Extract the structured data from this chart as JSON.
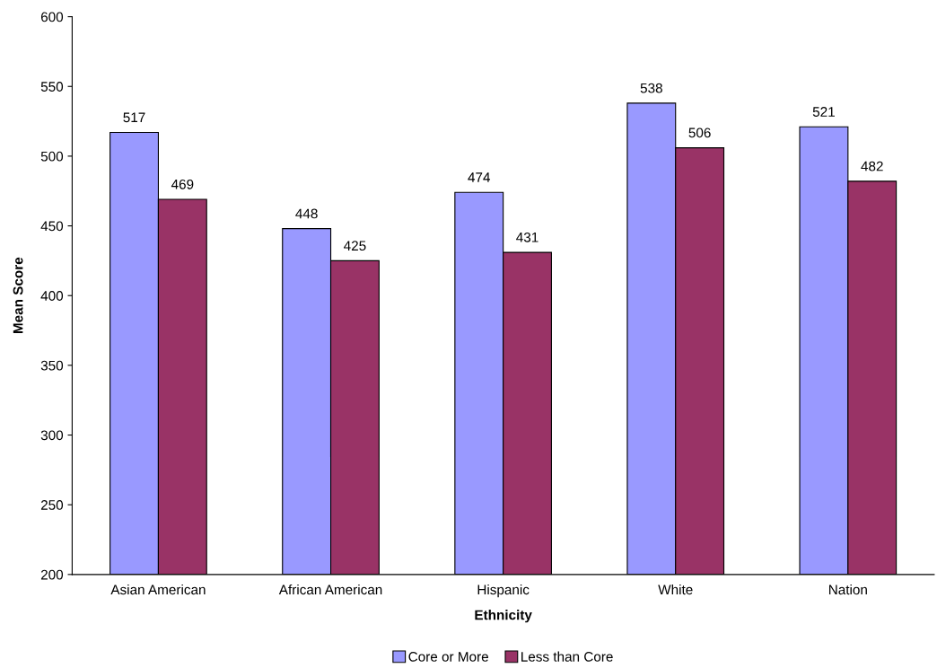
{
  "chart_data": {
    "type": "bar",
    "xlabel": "Ethnicity",
    "ylabel": "Mean Score",
    "categories": [
      "Asian American",
      "African American",
      "Hispanic",
      "White",
      "Nation"
    ],
    "series": [
      {
        "name": "Core or More",
        "color": "#9999ff",
        "values": [
          517,
          448,
          474,
          538,
          521
        ]
      },
      {
        "name": "Less than Core",
        "color": "#993366",
        "values": [
          469,
          425,
          431,
          506,
          482
        ]
      }
    ],
    "ylim": [
      200,
      600
    ],
    "yticks": [
      200,
      250,
      300,
      350,
      400,
      450,
      500,
      550,
      600
    ],
    "data_labels": true,
    "legend": "bottom",
    "grid": false
  }
}
